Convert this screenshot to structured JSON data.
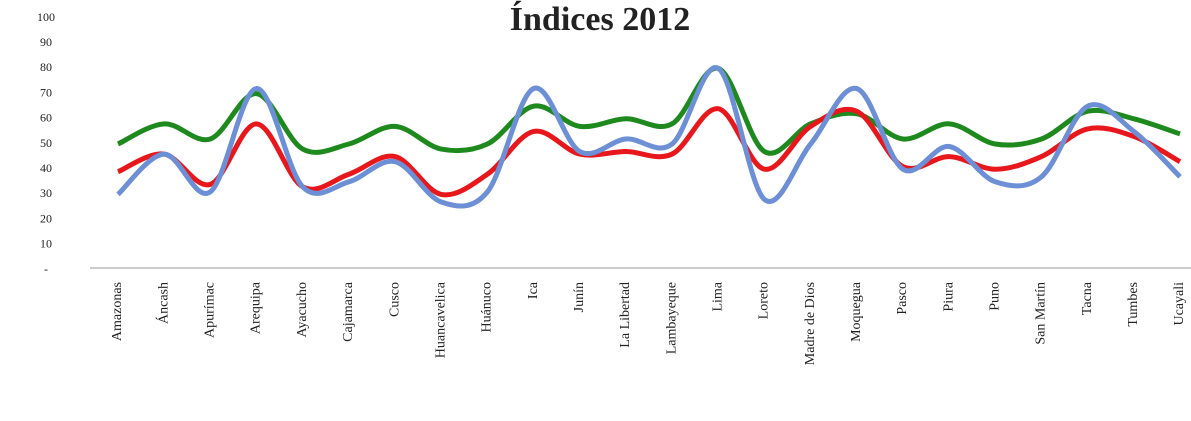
{
  "chart_data": {
    "type": "line",
    "title": "Índices 2012",
    "categories": [
      "Amazonas",
      "Áncash",
      "Apurímac",
      "Arequipa",
      "Ayacucho",
      "Cajamarca",
      "Cusco",
      "Huancavelica",
      "Huánuco",
      "Ica",
      "Junín",
      "La Libertad",
      "Lambayeque",
      "Lima",
      "Loreto",
      "Madre de Dios",
      "Moquegua",
      "Pasco",
      "Piura",
      "Puno",
      "San Martín",
      "Tacna",
      "Tumbes",
      "Ucayali"
    ],
    "series": [
      {
        "color": "#1e8a1e",
        "values": [
          50,
          58,
          52,
          70,
          48,
          50,
          57,
          48,
          50,
          65,
          57,
          60,
          58,
          80,
          47,
          58,
          62,
          52,
          58,
          50,
          52,
          63,
          60,
          54
        ]
      },
      {
        "color": "#e8171b",
        "values": [
          39,
          46,
          34,
          58,
          33,
          38,
          45,
          30,
          38,
          55,
          46,
          47,
          46,
          64,
          40,
          57,
          63,
          41,
          45,
          40,
          45,
          56,
          53,
          43
        ]
      },
      {
        "color": "#6d8fd6",
        "values": [
          30,
          46,
          31,
          72,
          33,
          35,
          43,
          27,
          31,
          72,
          47,
          52,
          50,
          80,
          28,
          50,
          72,
          40,
          49,
          35,
          37,
          65,
          55,
          37
        ]
      }
    ],
    "ylim": [
      0,
      100
    ],
    "yticks": [
      {
        "value": 0,
        "label": "-"
      },
      10,
      20,
      30,
      40,
      50,
      60,
      70,
      80,
      90,
      100
    ]
  }
}
